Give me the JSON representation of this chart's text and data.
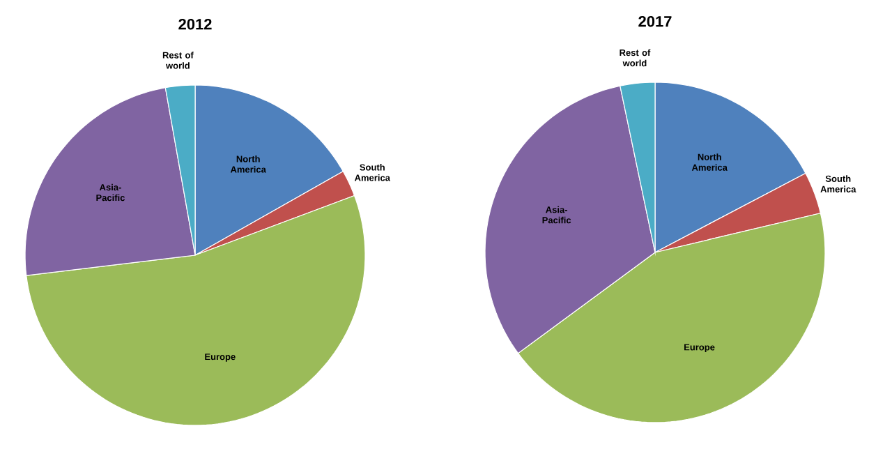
{
  "chart_data": [
    {
      "type": "pie",
      "title": "2012",
      "categories": [
        "North America",
        "South America",
        "Europe",
        "Asia-Pacific",
        "Rest of world"
      ],
      "values": [
        16.8,
        2.5,
        53.8,
        24.1,
        2.8
      ],
      "colors": [
        "#4f81bd",
        "#c0504d",
        "#9bbb59",
        "#8064a2",
        "#4bacc6"
      ]
    },
    {
      "type": "pie",
      "title": "2017",
      "categories": [
        "North America",
        "South America",
        "Europe",
        "Asia-Pacific",
        "Rest of world"
      ],
      "values": [
        17.3,
        4.0,
        43.6,
        31.8,
        3.3
      ],
      "colors": [
        "#4f81bd",
        "#c0504d",
        "#9bbb59",
        "#8064a2",
        "#4bacc6"
      ]
    }
  ]
}
